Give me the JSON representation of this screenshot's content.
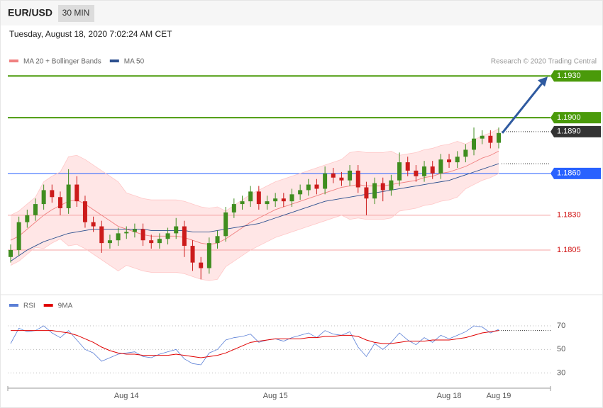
{
  "header": {
    "symbol": "EUR/USD",
    "interval": "30 MIN",
    "timestamp": "Tuesday, August 18, 2020 7:02:24 AM CET",
    "credit": "Research © 2020 Trading Central"
  },
  "chart_data": [
    {
      "type": "candlestick",
      "legend": [
        {
          "name": "MA 20 + Bollinger Bands",
          "color": "#f08080"
        },
        {
          "name": "MA 50",
          "color": "#2c4f8e"
        }
      ],
      "up_color": "#3f8d1f",
      "down_color": "#cc1b1b",
      "ylim": [
        1.1776,
        1.1954
      ],
      "xticks": [
        {
          "value": 14,
          "label": "Aug 14"
        },
        {
          "value": 32,
          "label": "Aug 15"
        },
        {
          "value": 53,
          "label": "Aug 18"
        },
        {
          "value": 59,
          "label": "Aug 19"
        }
      ],
      "levels": [
        {
          "value": 1.193,
          "label": "1.1930",
          "color": "#4a9a0a",
          "style": "box"
        },
        {
          "value": 1.19,
          "label": "1.1900",
          "color": "#4a9a0a",
          "style": "box"
        },
        {
          "value": 1.189,
          "label": "1.1890",
          "color": "#333333",
          "style": "box-dotted"
        },
        {
          "value": 1.186,
          "label": "1.1860",
          "color": "#2962ff",
          "style": "box"
        },
        {
          "value": 1.183,
          "label": "1.1830",
          "color": "#f4a3a3",
          "style": "text"
        },
        {
          "value": 1.1805,
          "label": "1.1805",
          "color": "#f4a3a3",
          "style": "text"
        }
      ],
      "candles": [
        [
          1.18,
          1.1809,
          1.1796,
          1.1805
        ],
        [
          1.1805,
          1.1829,
          1.1801,
          1.1825
        ],
        [
          1.1825,
          1.1834,
          1.1821,
          1.183
        ],
        [
          1.183,
          1.1842,
          1.1826,
          1.1838
        ],
        [
          1.1838,
          1.1852,
          1.1834,
          1.1848
        ],
        [
          1.1848,
          1.1852,
          1.1839,
          1.1843
        ],
        [
          1.1843,
          1.1847,
          1.183,
          1.1835
        ],
        [
          1.1835,
          1.1863,
          1.1831,
          1.1852
        ],
        [
          1.1852,
          1.1858,
          1.1836,
          1.184
        ],
        [
          1.184,
          1.1844,
          1.1821,
          1.1825
        ],
        [
          1.1825,
          1.1829,
          1.1818,
          1.1822
        ],
        [
          1.1822,
          1.1826,
          1.1803,
          1.181
        ],
        [
          1.181,
          1.1816,
          1.1806,
          1.1812
        ],
        [
          1.1812,
          1.1821,
          1.1808,
          1.1817
        ],
        [
          1.1817,
          1.1822,
          1.1813,
          1.1818
        ],
        [
          1.1818,
          1.1824,
          1.1814,
          1.182
        ],
        [
          1.182,
          1.1824,
          1.1808,
          1.1812
        ],
        [
          1.1812,
          1.1816,
          1.1806,
          1.181
        ],
        [
          1.181,
          1.1817,
          1.1806,
          1.1813
        ],
        [
          1.1813,
          1.1821,
          1.1809,
          1.1817
        ],
        [
          1.1817,
          1.1828,
          1.1813,
          1.1822
        ],
        [
          1.1822,
          1.1826,
          1.18,
          1.1808
        ],
        [
          1.1808,
          1.1812,
          1.179,
          1.1796
        ],
        [
          1.1796,
          1.18,
          1.1784,
          1.1792
        ],
        [
          1.1792,
          1.1814,
          1.1788,
          1.181
        ],
        [
          1.181,
          1.1819,
          1.1806,
          1.1815
        ],
        [
          1.1815,
          1.1836,
          1.1811,
          1.1832
        ],
        [
          1.1832,
          1.1842,
          1.1828,
          1.1838
        ],
        [
          1.1838,
          1.1844,
          1.1834,
          1.184
        ],
        [
          1.184,
          1.1851,
          1.1836,
          1.1847
        ],
        [
          1.1847,
          1.1851,
          1.1834,
          1.1838
        ],
        [
          1.1838,
          1.1844,
          1.1834,
          1.184
        ],
        [
          1.184,
          1.1846,
          1.1836,
          1.1842
        ],
        [
          1.1842,
          1.1846,
          1.1836,
          1.184
        ],
        [
          1.184,
          1.1849,
          1.1836,
          1.1845
        ],
        [
          1.1845,
          1.1852,
          1.1841,
          1.1848
        ],
        [
          1.1848,
          1.1856,
          1.1844,
          1.1852
        ],
        [
          1.1852,
          1.1856,
          1.1845,
          1.1849
        ],
        [
          1.1849,
          1.1865,
          1.1845,
          1.186
        ],
        [
          1.186,
          1.1864,
          1.1853,
          1.1857
        ],
        [
          1.1857,
          1.1861,
          1.1851,
          1.1855
        ],
        [
          1.1855,
          1.1866,
          1.1851,
          1.1862
        ],
        [
          1.1862,
          1.1866,
          1.1846,
          1.185
        ],
        [
          1.185,
          1.1854,
          1.183,
          1.1842
        ],
        [
          1.1842,
          1.1857,
          1.1838,
          1.1853
        ],
        [
          1.1853,
          1.1857,
          1.184,
          1.1848
        ],
        [
          1.1848,
          1.1859,
          1.1844,
          1.1855
        ],
        [
          1.1855,
          1.1875,
          1.1851,
          1.1868
        ],
        [
          1.1868,
          1.1872,
          1.1858,
          1.1862
        ],
        [
          1.1862,
          1.1866,
          1.1854,
          1.1858
        ],
        [
          1.1858,
          1.1869,
          1.1854,
          1.1865
        ],
        [
          1.1865,
          1.1869,
          1.1856,
          1.186
        ],
        [
          1.186,
          1.1874,
          1.1856,
          1.187
        ],
        [
          1.187,
          1.1874,
          1.1864,
          1.1868
        ],
        [
          1.1868,
          1.1876,
          1.1864,
          1.1872
        ],
        [
          1.1872,
          1.1881,
          1.1868,
          1.1877
        ],
        [
          1.1877,
          1.1893,
          1.1873,
          1.1885
        ],
        [
          1.1885,
          1.1891,
          1.1881,
          1.1887
        ],
        [
          1.1887,
          1.1891,
          1.1878,
          1.1882
        ],
        [
          1.1882,
          1.1893,
          1.1878,
          1.1889
        ]
      ],
      "ma20": [
        1.1812,
        1.1815,
        1.182,
        1.1825,
        1.183,
        1.1834,
        1.1837,
        1.184,
        1.1841,
        1.1838,
        1.1834,
        1.183,
        1.1826,
        1.1822,
        1.182,
        1.1818,
        1.1816,
        1.1815,
        1.1815,
        1.1815,
        1.1815,
        1.1814,
        1.1812,
        1.181,
        1.1809,
        1.181,
        1.1813,
        1.1817,
        1.1821,
        1.1825,
        1.1828,
        1.1831,
        1.1834,
        1.1836,
        1.1838,
        1.184,
        1.1842,
        1.1844,
        1.1846,
        1.1848,
        1.185,
        1.1851,
        1.1852,
        1.1851,
        1.1851,
        1.1851,
        1.1852,
        1.1853,
        1.1854,
        1.1855,
        1.1857,
        1.1858,
        1.186,
        1.1861,
        1.1863,
        1.1865,
        1.1868,
        1.1871,
        1.1873,
        1.1876
      ],
      "upper": [
        1.183,
        1.1833,
        1.1838,
        1.1843,
        1.1854,
        1.1858,
        1.1861,
        1.1872,
        1.1873,
        1.187,
        1.1866,
        1.1862,
        1.1858,
        1.1854,
        1.1846,
        1.1844,
        1.1842,
        1.1841,
        1.1841,
        1.1841,
        1.1841,
        1.184,
        1.1838,
        1.1836,
        1.1835,
        1.1836,
        1.1833,
        1.1837,
        1.1841,
        1.1845,
        1.1848,
        1.1851,
        1.1854,
        1.1856,
        1.1858,
        1.186,
        1.1862,
        1.1864,
        1.1866,
        1.1868,
        1.187,
        1.1875,
        1.1876,
        1.1875,
        1.1875,
        1.1875,
        1.1876,
        1.1873,
        1.1874,
        1.1875,
        1.1877,
        1.1878,
        1.188,
        1.1881,
        1.1883,
        1.1881,
        1.1884,
        1.1887,
        1.1889,
        1.1892
      ],
      "lower": [
        1.1794,
        1.1797,
        1.1802,
        1.1807,
        1.1806,
        1.181,
        1.1813,
        1.1808,
        1.1809,
        1.1806,
        1.1802,
        1.1798,
        1.1794,
        1.179,
        1.1794,
        1.1792,
        1.179,
        1.1789,
        1.1789,
        1.1789,
        1.1789,
        1.1788,
        1.1786,
        1.1784,
        1.1783,
        1.1784,
        1.1793,
        1.1797,
        1.1801,
        1.1805,
        1.1808,
        1.1811,
        1.1814,
        1.1816,
        1.1818,
        1.182,
        1.1822,
        1.1824,
        1.1826,
        1.1828,
        1.183,
        1.1827,
        1.1828,
        1.1827,
        1.1827,
        1.1827,
        1.1828,
        1.1833,
        1.1834,
        1.1835,
        1.1837,
        1.1838,
        1.184,
        1.1841,
        1.1843,
        1.1849,
        1.1852,
        1.1855,
        1.1857,
        1.186
      ],
      "ma50": [
        1.1797,
        1.1801,
        1.1805,
        1.1808,
        1.1811,
        1.1813,
        1.1815,
        1.1817,
        1.1818,
        1.1819,
        1.182,
        1.182,
        1.182,
        1.182,
        1.182,
        1.182,
        1.182,
        1.1819,
        1.1819,
        1.1819,
        1.1819,
        1.1819,
        1.1818,
        1.1818,
        1.1818,
        1.1819,
        1.182,
        1.1821,
        1.1822,
        1.1823,
        1.1824,
        1.1826,
        1.1828,
        1.183,
        1.1832,
        1.1834,
        1.1836,
        1.1838,
        1.184,
        1.1841,
        1.1842,
        1.1843,
        1.1844,
        1.1845,
        1.1846,
        1.1847,
        1.1848,
        1.1849,
        1.185,
        1.1851,
        1.1852,
        1.1853,
        1.1854,
        1.1855,
        1.1857,
        1.1859,
        1.1861,
        1.1863,
        1.1865,
        1.1867
      ]
    },
    {
      "type": "line",
      "ylim": [
        19,
        94
      ],
      "yticks": [
        30,
        50,
        70
      ],
      "series": [
        {
          "name": "RSI",
          "color": "#5b7fd6",
          "values": [
            55,
            68,
            65,
            66,
            70,
            64,
            60,
            66,
            58,
            50,
            47,
            40,
            43,
            46,
            47,
            48,
            44,
            43,
            46,
            48,
            50,
            42,
            38,
            37,
            47,
            50,
            58,
            60,
            61,
            63,
            56,
            58,
            59,
            57,
            60,
            62,
            64,
            60,
            66,
            63,
            62,
            65,
            52,
            44,
            55,
            50,
            56,
            64,
            58,
            54,
            60,
            56,
            62,
            59,
            62,
            65,
            70,
            69,
            64,
            67
          ]
        },
        {
          "name": "9MA",
          "color": "#e00000",
          "values": [
            66,
            66,
            66,
            66,
            66,
            66,
            65,
            64,
            62,
            59,
            56,
            52,
            49,
            47,
            46,
            46,
            45,
            45,
            45,
            45,
            46,
            45,
            44,
            43,
            44,
            45,
            47,
            50,
            53,
            56,
            57,
            58,
            59,
            59,
            59,
            59,
            60,
            60,
            61,
            61,
            62,
            62,
            61,
            58,
            56,
            55,
            55,
            56,
            57,
            57,
            57,
            58,
            58,
            58,
            59,
            60,
            62,
            64,
            65,
            66
          ]
        }
      ]
    }
  ]
}
